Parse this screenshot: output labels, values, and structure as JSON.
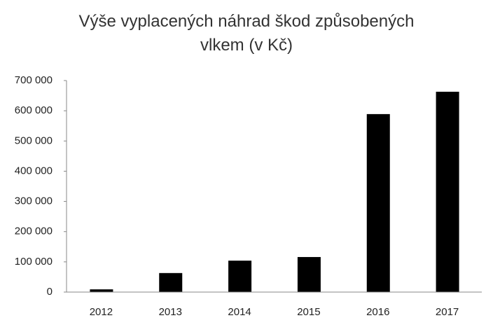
{
  "chart_data": {
    "type": "bar",
    "title": "Výše vyplacených náhrad škod způsobených vlkem (v Kč)",
    "categories": [
      "2012",
      "2013",
      "2014",
      "2015",
      "2016",
      "2017"
    ],
    "values": [
      9000,
      63000,
      104000,
      116000,
      589000,
      663000
    ],
    "color": "#000000",
    "ylim": [
      0,
      700000
    ],
    "yticks": [
      0,
      {
        "value": 100000,
        "label": "100 000"
      },
      {
        "value": 200000,
        "label": "200 000"
      },
      {
        "value": 300000,
        "label": "300 000"
      },
      {
        "value": 400000,
        "label": "400 000"
      },
      {
        "value": 500000,
        "label": "500 000"
      },
      {
        "value": 600000,
        "label": "600 000"
      },
      {
        "value": 700000,
        "label": "700 000"
      }
    ],
    "grid": false
  }
}
